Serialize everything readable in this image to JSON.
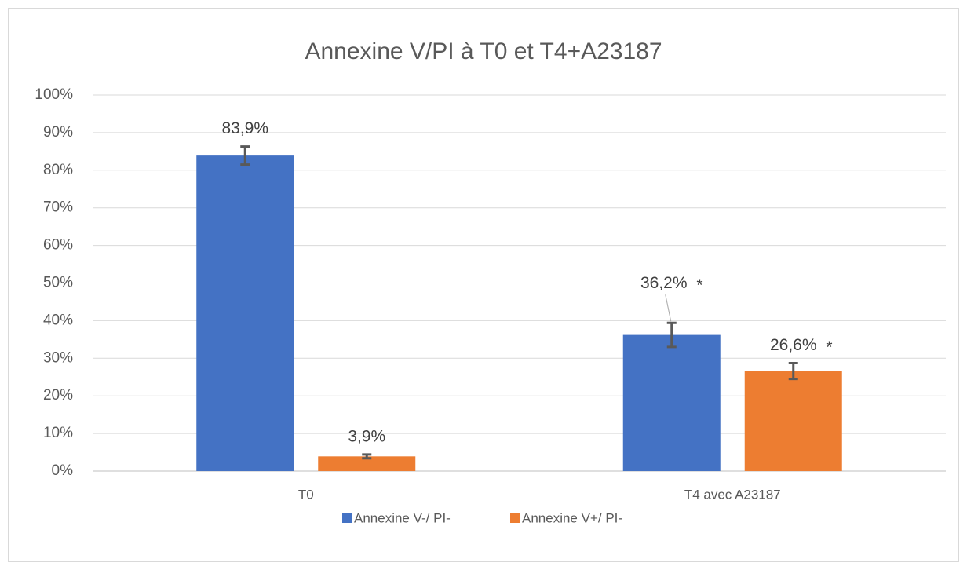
{
  "chart_data": {
    "type": "bar",
    "title": "Annexine V/PI à T0 et T4+A23187",
    "categories": [
      "T0",
      "T4 avec A23187"
    ],
    "series": [
      {
        "name": "Annexine V-/ PI-",
        "color": "#4472c4",
        "values": [
          83.9,
          36.2
        ],
        "value_labels": [
          "83,9%",
          "36,2%"
        ],
        "errors": [
          2.4,
          3.2
        ],
        "annotations": [
          null,
          "*"
        ]
      },
      {
        "name": "Annexine V+/ PI-",
        "color": "#ed7d31",
        "values": [
          3.9,
          26.6
        ],
        "value_labels": [
          "3,9%",
          "26,6%"
        ],
        "errors": [
          0.5,
          2.1
        ],
        "annotations": [
          null,
          "*"
        ]
      }
    ],
    "ylim": [
      0,
      100
    ],
    "yticks": [
      {
        "value": 0,
        "label": "0%"
      },
      {
        "value": 10,
        "label": "10%"
      },
      {
        "value": 20,
        "label": "20%"
      },
      {
        "value": 30,
        "label": "30%"
      },
      {
        "value": 40,
        "label": "40%"
      },
      {
        "value": 50,
        "label": "50%"
      },
      {
        "value": 60,
        "label": "60%"
      },
      {
        "value": 70,
        "label": "70%"
      },
      {
        "value": 80,
        "label": "80%"
      },
      {
        "value": 90,
        "label": "90%"
      },
      {
        "value": 100,
        "label": "100%"
      }
    ],
    "grid": true,
    "legend": "bottom"
  }
}
